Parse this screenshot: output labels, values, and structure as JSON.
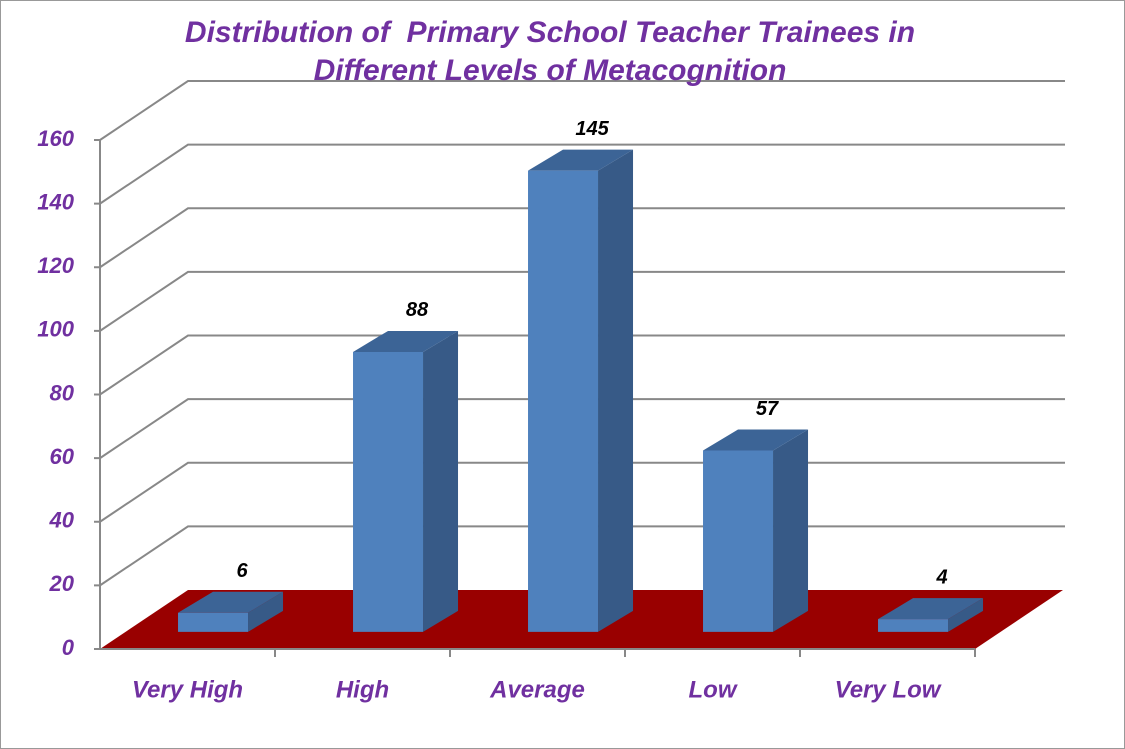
{
  "chart_data": {
    "type": "bar3d",
    "title": "Distribution of  Primary School Teacher Trainees in Different Levels of Metacognition",
    "categories": [
      "Very High",
      "High",
      "Average",
      "Low",
      "Very Low"
    ],
    "values": [
      6,
      88,
      145,
      57,
      4
    ],
    "color": "#4f81bd",
    "floor_color": "#990000",
    "ylim": [
      0,
      160
    ],
    "yticks": [
      0,
      20,
      40,
      60,
      80,
      100,
      120,
      140,
      160
    ],
    "grid": true
  }
}
